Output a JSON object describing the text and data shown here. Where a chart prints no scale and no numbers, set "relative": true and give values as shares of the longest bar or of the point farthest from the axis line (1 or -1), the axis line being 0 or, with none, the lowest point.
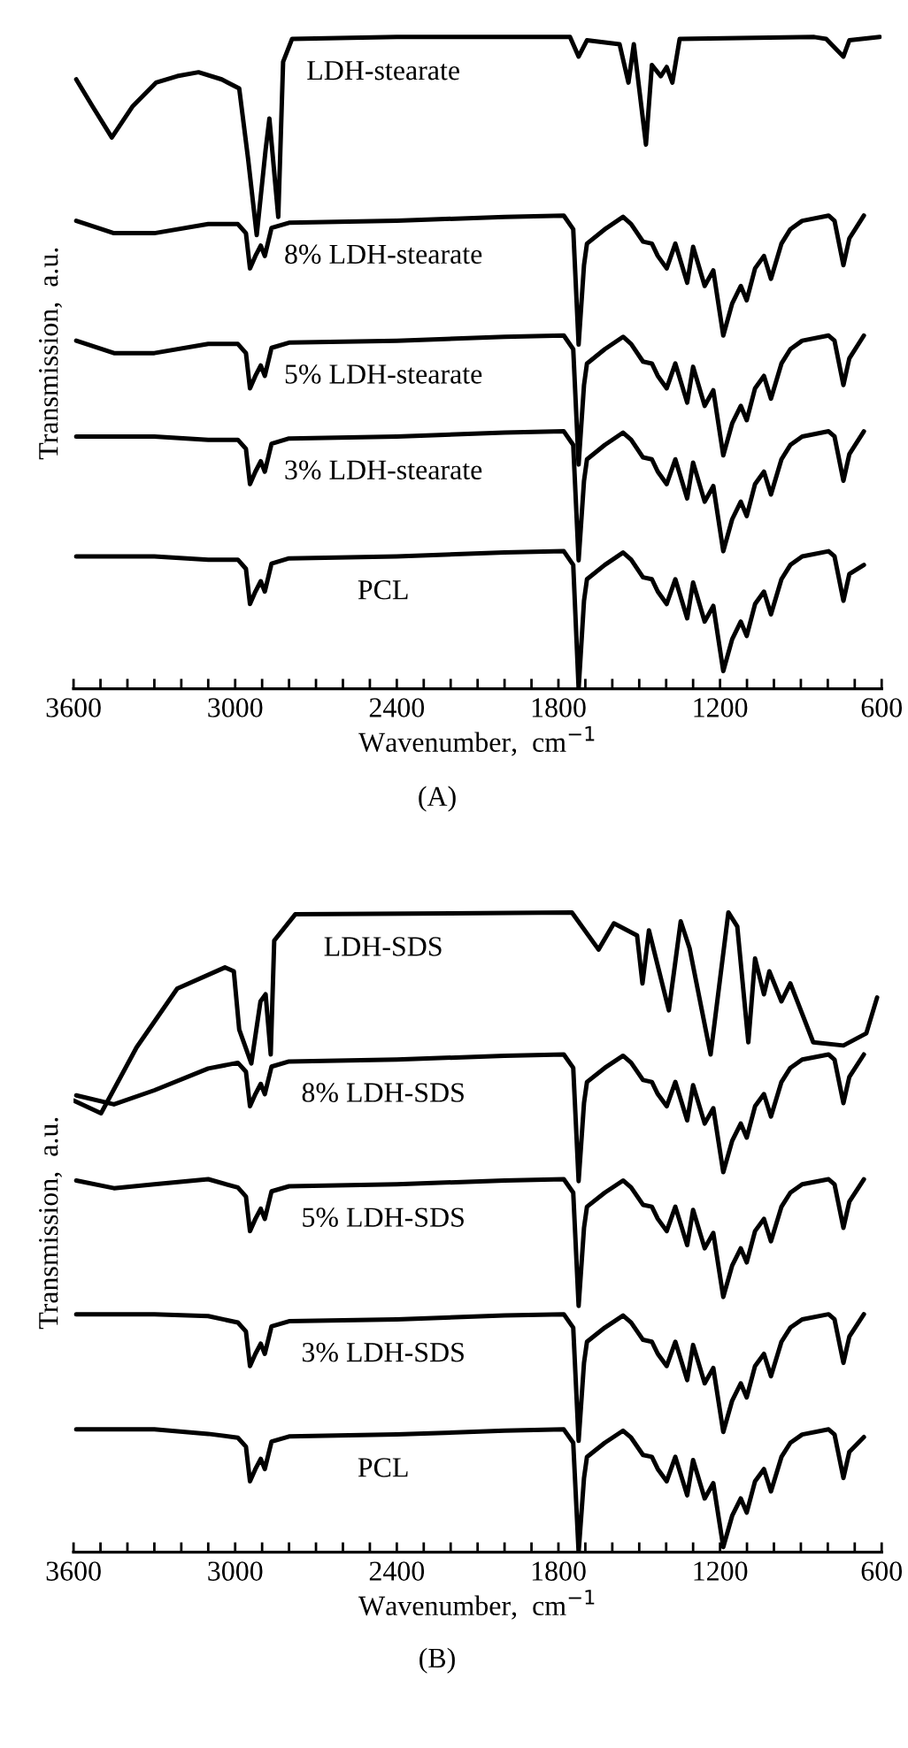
{
  "chart_data": [
    {
      "type": "line",
      "relative": true,
      "xlabel": "Wavenumber,  cm$^{−1}$",
      "ylabel": "Transmission,  a.u.",
      "annotations": [
        "(A)"
      ],
      "xlim": [
        3600,
        600
      ],
      "xticks": [
        3600,
        {
          "value": 3500,
          "label": null
        },
        {
          "value": 3400,
          "label": null
        },
        {
          "value": 3300,
          "label": null
        },
        {
          "value": 3200,
          "label": null
        },
        {
          "value": 3100,
          "label": null
        },
        3000,
        {
          "value": 2900,
          "label": null
        },
        {
          "value": 2800,
          "label": null
        },
        {
          "value": 2700,
          "label": null
        },
        {
          "value": 2600,
          "label": null
        },
        {
          "value": 2500,
          "label": null
        },
        2400,
        {
          "value": 2300,
          "label": null
        },
        {
          "value": 2200,
          "label": null
        },
        {
          "value": 2100,
          "label": null
        },
        {
          "value": 2000,
          "label": null
        },
        {
          "value": 1900,
          "label": null
        },
        1800,
        {
          "value": 1700,
          "label": null
        },
        {
          "value": 1600,
          "label": null
        },
        {
          "value": 1500,
          "label": null
        },
        {
          "value": 1400,
          "label": null
        },
        {
          "value": 1300,
          "label": null
        },
        1200,
        {
          "value": 1100,
          "label": null
        },
        {
          "value": 1000,
          "label": null
        },
        {
          "value": 900,
          "label": null
        },
        {
          "value": 800,
          "label": null
        },
        {
          "value": 700,
          "label": null
        },
        600
      ],
      "x": [
        3590,
        3450,
        3300,
        3100,
        2990,
        2960,
        2945,
        2925,
        2905,
        2890,
        2865,
        2800,
        2400,
        2000,
        1780,
        1745,
        1725,
        1705,
        1694,
        1628,
        1560,
        1530,
        1486,
        1453,
        1431,
        1398,
        1366,
        1322,
        1300,
        1257,
        1225,
        1188,
        1155,
        1123,
        1101,
        1070,
        1037,
        1011,
        972,
        939,
        895,
        797,
        775,
        742,
        720,
        666
      ],
      "series": [
        {
          "name": "LDH-stearate",
          "color": "#000000",
          "x": [
            3590,
            3530,
            3458,
            3380,
            3294,
            3215,
            3136,
            3050,
            2985,
            2952,
            2920,
            2887,
            2873,
            2840,
            2822,
            2789,
            2400,
            1780,
            1757,
            1725,
            1694,
            1573,
            1540,
            1520,
            1475,
            1453,
            1420,
            1398,
            1377,
            1350,
            850,
            806,
            742,
            720,
            607
          ],
          "values": [
            0.935,
            0.894,
            0.846,
            0.894,
            0.93,
            0.94,
            0.946,
            0.935,
            0.921,
            0.813,
            0.696,
            0.827,
            0.875,
            0.724,
            0.962,
            0.997,
            1,
            1,
            1,
            0.97,
            0.995,
            0.989,
            0.93,
            0.989,
            0.835,
            0.957,
            0.94,
            0.954,
            0.93,
            0.997,
            1,
            0.997,
            0.97,
            0.995,
            1
          ]
        },
        {
          "name": "8% LDH-stearate",
          "color": "#000000",
          "values": [
            0.718,
            0.699,
            0.699,
            0.713,
            0.713,
            0.699,
            0.645,
            0.664,
            0.68,
            0.664,
            0.707,
            0.715,
            0.718,
            0.724,
            0.726,
            0.705,
            0.528,
            0.65,
            0.683,
            0.705,
            0.724,
            0.713,
            0.686,
            0.683,
            0.664,
            0.645,
            0.683,
            0.623,
            0.678,
            0.618,
            0.642,
            0.542,
            0.591,
            0.618,
            0.596,
            0.645,
            0.664,
            0.629,
            0.683,
            0.705,
            0.718,
            0.726,
            0.718,
            0.65,
            0.691,
            0.726
          ]
        },
        {
          "name": "5% LDH-stearate",
          "color": "#000000",
          "values": [
            0.534,
            0.515,
            0.515,
            0.529,
            0.529,
            0.515,
            0.461,
            0.48,
            0.496,
            0.48,
            0.523,
            0.531,
            0.534,
            0.54,
            0.542,
            0.521,
            0.344,
            0.466,
            0.499,
            0.521,
            0.54,
            0.529,
            0.502,
            0.499,
            0.48,
            0.461,
            0.499,
            0.439,
            0.494,
            0.434,
            0.458,
            0.358,
            0.407,
            0.434,
            0.412,
            0.461,
            0.48,
            0.445,
            0.499,
            0.521,
            0.534,
            0.542,
            0.534,
            0.466,
            0.507,
            0.542
          ]
        },
        {
          "name": "3% LDH-stearate",
          "color": "#000000",
          "values": [
            0.387,
            0.387,
            0.387,
            0.382,
            0.382,
            0.368,
            0.314,
            0.333,
            0.349,
            0.333,
            0.376,
            0.384,
            0.387,
            0.393,
            0.395,
            0.374,
            0.197,
            0.319,
            0.352,
            0.374,
            0.393,
            0.382,
            0.355,
            0.352,
            0.333,
            0.314,
            0.352,
            0.292,
            0.347,
            0.287,
            0.311,
            0.211,
            0.26,
            0.287,
            0.265,
            0.314,
            0.333,
            0.298,
            0.352,
            0.374,
            0.387,
            0.395,
            0.387,
            0.319,
            0.36,
            0.395
          ]
        },
        {
          "name": "PCL",
          "color": "#000000",
          "values": [
            0.203,
            0.203,
            0.203,
            0.198,
            0.198,
            0.184,
            0.13,
            0.149,
            0.165,
            0.149,
            0.192,
            0.2,
            0.203,
            0.209,
            0.211,
            0.19,
            0,
            0.135,
            0.168,
            0.19,
            0.209,
            0.198,
            0.171,
            0.168,
            0.149,
            0.13,
            0.168,
            0.108,
            0.163,
            0.103,
            0.127,
            0.027,
            0.076,
            0.103,
            0.081,
            0.13,
            0.149,
            0.114,
            0.168,
            0.19,
            0.203,
            0.211,
            0.203,
            0.135,
            0.176,
            0.19
          ]
        }
      ]
    },
    {
      "type": "line",
      "relative": true,
      "xlabel": "Wavenumber,  cm$^{−1}$",
      "ylabel": "Transmission,  a.u.",
      "annotations": [
        "(B)"
      ],
      "xlim": [
        3600,
        600
      ],
      "xticks": [
        3600,
        {
          "value": 3500,
          "label": null
        },
        {
          "value": 3400,
          "label": null
        },
        {
          "value": 3300,
          "label": null
        },
        {
          "value": 3200,
          "label": null
        },
        {
          "value": 3100,
          "label": null
        },
        3000,
        {
          "value": 2900,
          "label": null
        },
        {
          "value": 2800,
          "label": null
        },
        {
          "value": 2700,
          "label": null
        },
        {
          "value": 2600,
          "label": null
        },
        {
          "value": 2500,
          "label": null
        },
        2400,
        {
          "value": 2300,
          "label": null
        },
        {
          "value": 2200,
          "label": null
        },
        {
          "value": 2100,
          "label": null
        },
        {
          "value": 2000,
          "label": null
        },
        {
          "value": 1900,
          "label": null
        },
        1800,
        {
          "value": 1700,
          "label": null
        },
        {
          "value": 1600,
          "label": null
        },
        {
          "value": 1500,
          "label": null
        },
        {
          "value": 1400,
          "label": null
        },
        {
          "value": 1300,
          "label": null
        },
        1200,
        {
          "value": 1100,
          "label": null
        },
        {
          "value": 1000,
          "label": null
        },
        {
          "value": 900,
          "label": null
        },
        {
          "value": 800,
          "label": null
        },
        {
          "value": 700,
          "label": null
        },
        600
      ],
      "x": [
        3590,
        3450,
        3300,
        3100,
        2990,
        2960,
        2945,
        2925,
        2905,
        2890,
        2865,
        2800,
        2400,
        2000,
        1780,
        1745,
        1725,
        1705,
        1694,
        1628,
        1560,
        1530,
        1486,
        1453,
        1431,
        1398,
        1366,
        1322,
        1300,
        1257,
        1225,
        1188,
        1155,
        1123,
        1101,
        1070,
        1037,
        1011,
        972,
        939,
        895,
        797,
        775,
        742,
        720,
        666
      ],
      "series": [
        {
          "name": "LDH-SDS",
          "color": "#000000",
          "x": [
            3600,
            3498,
            3366,
            3215,
            3038,
            3005,
            2985,
            2940,
            2906,
            2887,
            2868,
            2855,
            2777,
            1750,
            1651,
            1594,
            1508,
            1488,
            1464,
            1390,
            1346,
            1313,
            1235,
            1169,
            1136,
            1095,
            1070,
            1037,
            1017,
            972,
            939,
            854,
            742,
            657,
            617
          ],
          "values": [
            0.706,
            0.686,
            0.789,
            0.881,
            0.914,
            0.908,
            0.817,
            0.764,
            0.861,
            0.872,
            0.778,
            0.956,
            0.997,
            1,
            0.942,
            0.983,
            0.964,
            0.889,
            0.972,
            0.847,
            0.986,
            0.944,
            0.778,
            1,
            0.978,
            0.797,
            0.928,
            0.872,
            0.908,
            0.861,
            0.889,
            0.797,
            0.792,
            0.811,
            0.867
          ]
        },
        {
          "name": "8% LDH-SDS",
          "color": "#000000",
          "values": [
            0.714,
            0.7,
            0.722,
            0.756,
            0.765,
            0.751,
            0.697,
            0.716,
            0.732,
            0.716,
            0.759,
            0.767,
            0.77,
            0.776,
            0.778,
            0.757,
            0.58,
            0.702,
            0.735,
            0.757,
            0.776,
            0.765,
            0.738,
            0.735,
            0.716,
            0.697,
            0.735,
            0.675,
            0.73,
            0.67,
            0.694,
            0.594,
            0.643,
            0.67,
            0.648,
            0.697,
            0.716,
            0.681,
            0.735,
            0.757,
            0.77,
            0.778,
            0.77,
            0.702,
            0.743,
            0.778
          ]
        },
        {
          "name": "5% LDH-SDS",
          "color": "#000000",
          "values": [
            0.581,
            0.569,
            0.575,
            0.583,
            0.57,
            0.556,
            0.502,
            0.521,
            0.537,
            0.521,
            0.564,
            0.572,
            0.575,
            0.581,
            0.583,
            0.562,
            0.385,
            0.507,
            0.54,
            0.562,
            0.581,
            0.57,
            0.543,
            0.54,
            0.521,
            0.502,
            0.54,
            0.48,
            0.535,
            0.475,
            0.499,
            0.399,
            0.448,
            0.475,
            0.453,
            0.502,
            0.521,
            0.486,
            0.54,
            0.562,
            0.575,
            0.583,
            0.575,
            0.507,
            0.548,
            0.583
          ]
        },
        {
          "name": "3% LDH-SDS",
          "color": "#000000",
          "values": [
            0.372,
            0.372,
            0.372,
            0.369,
            0.359,
            0.345,
            0.291,
            0.31,
            0.326,
            0.31,
            0.353,
            0.361,
            0.364,
            0.37,
            0.372,
            0.351,
            0.174,
            0.296,
            0.329,
            0.351,
            0.37,
            0.359,
            0.332,
            0.329,
            0.31,
            0.291,
            0.329,
            0.269,
            0.324,
            0.264,
            0.288,
            0.188,
            0.237,
            0.264,
            0.242,
            0.291,
            0.31,
            0.275,
            0.329,
            0.351,
            0.364,
            0.372,
            0.364,
            0.296,
            0.337,
            0.372
          ]
        },
        {
          "name": "PCL",
          "color": "#000000",
          "values": [
            0.192,
            0.192,
            0.192,
            0.185,
            0.179,
            0.165,
            0.111,
            0.13,
            0.146,
            0.13,
            0.173,
            0.181,
            0.184,
            0.19,
            0.192,
            0.171,
            0,
            0.116,
            0.149,
            0.171,
            0.19,
            0.179,
            0.152,
            0.149,
            0.13,
            0.111,
            0.149,
            0.089,
            0.144,
            0.084,
            0.108,
            0.008,
            0.057,
            0.084,
            0.062,
            0.111,
            0.13,
            0.095,
            0.149,
            0.171,
            0.184,
            0.192,
            0.184,
            0.116,
            0.157,
            0.18
          ]
        }
      ]
    }
  ]
}
